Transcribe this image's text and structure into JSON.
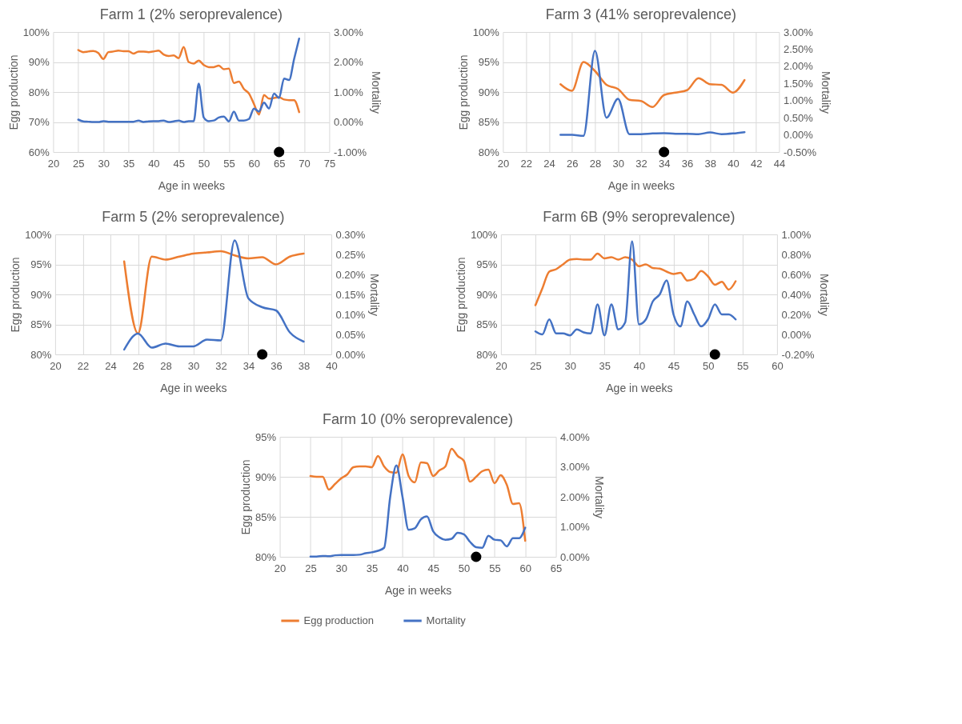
{
  "chart_data": [
    {
      "type": "line",
      "title": "Farm 1 (2% seroprevalence)",
      "xlabel": "Age in weeks",
      "ylabel": "Egg production",
      "y2label": "Mortality",
      "grid": true,
      "xlim": [
        20,
        75
      ],
      "xticks": [
        20,
        25,
        30,
        35,
        40,
        45,
        50,
        55,
        60,
        65,
        70,
        75
      ],
      "ylim": [
        60,
        100
      ],
      "yticks": [
        {
          "value": 60,
          "label": "60%"
        },
        {
          "value": 70,
          "label": "70%"
        },
        {
          "value": 80,
          "label": "80%"
        },
        {
          "value": 90,
          "label": "90%"
        },
        {
          "value": 100,
          "label": "100%"
        }
      ],
      "y2lim": [
        -1,
        3
      ],
      "y2ticks": [
        {
          "value": -1,
          "label": "-1.00%"
        },
        {
          "value": 0,
          "label": "0.00%"
        },
        {
          "value": 1,
          "label": "1.00%"
        },
        {
          "value": 2,
          "label": "2.00%"
        },
        {
          "value": 3,
          "label": "3.00%"
        }
      ],
      "series": [
        {
          "color": "#ed7d31",
          "x": [
            25,
            26,
            27,
            28,
            29,
            30,
            31,
            32,
            33,
            34,
            35,
            36,
            37,
            38,
            39,
            40,
            41,
            42,
            43,
            44,
            45,
            46,
            47,
            48,
            49,
            50,
            51,
            52,
            53,
            54,
            55,
            56,
            57,
            58,
            59,
            60,
            61,
            62,
            63,
            64,
            65,
            66,
            67,
            68,
            69
          ],
          "values": [
            94,
            93.3,
            93.5,
            93.7,
            93,
            91,
            93.3,
            93.5,
            93.8,
            93.6,
            93.6,
            92.8,
            93.5,
            93.5,
            93.3,
            93.5,
            93.8,
            92.5,
            92,
            92.2,
            91.3,
            95,
            90,
            89.5,
            90.5,
            89,
            88.3,
            88.3,
            88.8,
            87.6,
            87.8,
            83,
            83.5,
            81,
            79.5,
            76,
            72.5,
            79,
            77.8,
            78,
            78.3,
            77.5,
            77.3,
            77.3,
            73.3
          ]
        },
        {
          "color": "#4472c4",
          "axis": "y2",
          "x": [
            25,
            26,
            27,
            28,
            29,
            30,
            31,
            32,
            33,
            34,
            35,
            36,
            37,
            38,
            39,
            40,
            41,
            42,
            43,
            44,
            45,
            46,
            47,
            48,
            49,
            50,
            51,
            52,
            53,
            54,
            55,
            56,
            57,
            58,
            59,
            60,
            61,
            62,
            63,
            64,
            65,
            66,
            67,
            68,
            69
          ],
          "values": [
            0.08,
            0.02,
            0.01,
            0,
            0,
            0.03,
            0.01,
            0.01,
            0.01,
            0.01,
            0.01,
            0.01,
            0.05,
            0,
            0.02,
            0.03,
            0.03,
            0.05,
            0,
            0.02,
            0.05,
            0,
            0.03,
            0.03,
            1.28,
            0.15,
            0.03,
            0.05,
            0.15,
            0.18,
            0.02,
            0.35,
            0.05,
            0.05,
            0.1,
            0.45,
            0.35,
            0.65,
            0.45,
            0.95,
            0.8,
            1.45,
            1.4,
            2.1,
            2.78
          ]
        },
        {
          "type": "scatter",
          "color": "#000000",
          "x": [
            65
          ],
          "values": [
            60
          ]
        }
      ]
    },
    {
      "type": "line",
      "title": "Farm 3 (41% seroprevalence)",
      "xlabel": "Age in weeks",
      "ylabel": "Egg production",
      "y2label": "Mortality",
      "grid": true,
      "xlim": [
        20,
        44
      ],
      "xticks": [
        20,
        22,
        24,
        26,
        28,
        30,
        32,
        34,
        36,
        38,
        40,
        42,
        44
      ],
      "ylim": [
        80,
        100
      ],
      "yticks": [
        {
          "value": 80,
          "label": "80%"
        },
        {
          "value": 85,
          "label": "85%"
        },
        {
          "value": 90,
          "label": "90%"
        },
        {
          "value": 95,
          "label": "95%"
        },
        {
          "value": 100,
          "label": "100%"
        }
      ],
      "y2lim": [
        -0.5,
        3
      ],
      "y2ticks": [
        {
          "value": -0.5,
          "label": "-0.50%"
        },
        {
          "value": 0,
          "label": "0.00%"
        },
        {
          "value": 0.5,
          "label": "0.50%"
        },
        {
          "value": 1,
          "label": "1.00%"
        },
        {
          "value": 1.5,
          "label": "1.50%"
        },
        {
          "value": 2,
          "label": "2.00%"
        },
        {
          "value": 2.5,
          "label": "2.50%"
        },
        {
          "value": 3,
          "label": "3.00%"
        }
      ],
      "series": [
        {
          "color": "#ed7d31",
          "x": [
            25,
            26,
            27,
            28,
            29,
            30,
            31,
            32,
            33,
            34,
            35,
            36,
            37,
            38,
            39,
            40,
            41
          ],
          "values": [
            91.3,
            90.2,
            95,
            93.5,
            91.2,
            90.5,
            88.7,
            88.5,
            87.5,
            89.5,
            89.9,
            90.3,
            92.3,
            91.3,
            91.2,
            89.9,
            92
          ]
        },
        {
          "color": "#4472c4",
          "axis": "y2",
          "x": [
            25,
            26,
            27,
            28,
            29,
            30,
            31,
            32,
            33,
            34,
            35,
            36,
            37,
            38,
            39,
            40,
            41
          ],
          "values": [
            0,
            0,
            -0.03,
            2.45,
            0.5,
            1.05,
            0.02,
            0.02,
            0.04,
            0.05,
            0.03,
            0.03,
            0.02,
            0.07,
            0.02,
            0.04,
            0.08
          ]
        },
        {
          "type": "scatter",
          "color": "#000000",
          "x": [
            34
          ],
          "values": [
            80
          ]
        }
      ]
    },
    {
      "type": "line",
      "title": "Farm 5 (2% seroprevalence)",
      "xlabel": "Age in weeks",
      "ylabel": "Egg production",
      "y2label": "Mortality",
      "grid": true,
      "xlim": [
        20,
        40
      ],
      "xticks": [
        20,
        22,
        24,
        26,
        28,
        30,
        32,
        34,
        36,
        38,
        40
      ],
      "ylim": [
        80,
        100
      ],
      "yticks": [
        {
          "value": 80,
          "label": "80%"
        },
        {
          "value": 85,
          "label": "85%"
        },
        {
          "value": 90,
          "label": "90%"
        },
        {
          "value": 95,
          "label": "95%"
        },
        {
          "value": 100,
          "label": "100%"
        }
      ],
      "y2lim": [
        0,
        0.3
      ],
      "y2ticks": [
        {
          "value": 0,
          "label": "0.00%"
        },
        {
          "value": 0.05,
          "label": "0.05%"
        },
        {
          "value": 0.1,
          "label": "0.10%"
        },
        {
          "value": 0.15,
          "label": "0.15%"
        },
        {
          "value": 0.2,
          "label": "0.20%"
        },
        {
          "value": 0.25,
          "label": "0.25%"
        },
        {
          "value": 0.3,
          "label": "0.30%"
        }
      ],
      "series": [
        {
          "color": "#ed7d31",
          "x": [
            25,
            26,
            27,
            28,
            29,
            30,
            31,
            32,
            33,
            34,
            35,
            36,
            37,
            38
          ],
          "values": [
            95.5,
            83.5,
            96.3,
            95.8,
            96.3,
            96.8,
            97,
            97.2,
            96.5,
            96,
            96.2,
            95,
            96.3,
            96.8
          ]
        },
        {
          "color": "#4472c4",
          "axis": "y2",
          "x": [
            25,
            26,
            27,
            28,
            29,
            30,
            31,
            32,
            33,
            34,
            35,
            36,
            37,
            38
          ],
          "values": [
            0.012,
            0.052,
            0.017,
            0.027,
            0.02,
            0.02,
            0.037,
            0.035,
            0.285,
            0.14,
            0.118,
            0.11,
            0.055,
            0.032
          ]
        },
        {
          "type": "scatter",
          "color": "#000000",
          "x": [
            35
          ],
          "values": [
            80
          ]
        }
      ]
    },
    {
      "type": "line",
      "title": "Farm 6B (9% seroprevalence)",
      "xlabel": "Age in weeks",
      "ylabel": "Egg production",
      "y2label": "Mortality",
      "grid": true,
      "xlim": [
        20,
        60
      ],
      "xticks": [
        20,
        25,
        30,
        35,
        40,
        45,
        50,
        55,
        60
      ],
      "ylim": [
        80,
        100
      ],
      "yticks": [
        {
          "value": 80,
          "label": "80%"
        },
        {
          "value": 85,
          "label": "85%"
        },
        {
          "value": 90,
          "label": "90%"
        },
        {
          "value": 95,
          "label": "95%"
        },
        {
          "value": 100,
          "label": "100%"
        }
      ],
      "y2lim": [
        -0.2,
        1
      ],
      "y2ticks": [
        {
          "value": -0.2,
          "label": "-0.20%"
        },
        {
          "value": 0,
          "label": "0.00%"
        },
        {
          "value": 0.2,
          "label": "0.20%"
        },
        {
          "value": 0.4,
          "label": "0.40%"
        },
        {
          "value": 0.6,
          "label": "0.60%"
        },
        {
          "value": 0.8,
          "label": "0.80%"
        },
        {
          "value": 1,
          "label": "1.00%"
        }
      ],
      "series": [
        {
          "color": "#ed7d31",
          "x": [
            25,
            26,
            27,
            28,
            29,
            30,
            31,
            32,
            33,
            34,
            35,
            36,
            37,
            38,
            39,
            40,
            41,
            42,
            43,
            44,
            45,
            46,
            47,
            48,
            49,
            50,
            51,
            52,
            53,
            54
          ],
          "values": [
            88.2,
            91,
            93.8,
            94.2,
            95,
            95.8,
            95.9,
            95.8,
            95.8,
            96.8,
            96,
            96.2,
            95.8,
            96.2,
            95.8,
            94.7,
            95,
            94.4,
            94.3,
            93.8,
            93.4,
            93.6,
            92.3,
            92.6,
            93.9,
            93,
            91.6,
            92.1,
            90.8,
            92.2
          ]
        },
        {
          "color": "#4472c4",
          "axis": "y2",
          "x": [
            25,
            26,
            27,
            28,
            29,
            30,
            31,
            32,
            33,
            34,
            35,
            36,
            37,
            38,
            39,
            40,
            41,
            42,
            43,
            44,
            45,
            46,
            47,
            48,
            49,
            50,
            51,
            52,
            53,
            54
          ],
          "values": [
            0.03,
            0,
            0.15,
            0.01,
            0.01,
            -0.01,
            0.05,
            0.02,
            0.01,
            0.3,
            -0.01,
            0.3,
            0.05,
            0.12,
            0.93,
            0.1,
            0.15,
            0.33,
            0.4,
            0.54,
            0.2,
            0.08,
            0.33,
            0.2,
            0.08,
            0.15,
            0.3,
            0.2,
            0.2,
            0.15
          ]
        },
        {
          "type": "scatter",
          "color": "#000000",
          "x": [
            51
          ],
          "values": [
            80
          ]
        }
      ]
    },
    {
      "type": "line",
      "title": "Farm 10 (0% seroprevalence)",
      "xlabel": "Age in weeks",
      "ylabel": "Egg production",
      "y2label": "Mortality",
      "grid": true,
      "legend": "bottom",
      "xlim": [
        20,
        65
      ],
      "xticks": [
        20,
        25,
        30,
        35,
        40,
        45,
        50,
        55,
        60,
        65
      ],
      "ylim": [
        80,
        95
      ],
      "yticks": [
        {
          "value": 80,
          "label": "80%"
        },
        {
          "value": 85,
          "label": "85%"
        },
        {
          "value": 90,
          "label": "90%"
        },
        {
          "value": 95,
          "label": "95%"
        }
      ],
      "y2lim": [
        0,
        4
      ],
      "y2ticks": [
        {
          "value": 0,
          "label": "0.00%"
        },
        {
          "value": 1,
          "label": "1.00%"
        },
        {
          "value": 2,
          "label": "2.00%"
        },
        {
          "value": 3,
          "label": "3.00%"
        },
        {
          "value": 4,
          "label": "4.00%"
        }
      ],
      "series": [
        {
          "name": "Egg production",
          "color": "#ed7d31",
          "x": [
            25,
            26,
            27,
            28,
            29,
            30,
            31,
            32,
            33,
            34,
            35,
            36,
            37,
            38,
            39,
            40,
            41,
            42,
            43,
            44,
            45,
            46,
            47,
            48,
            49,
            50,
            51,
            52,
            53,
            54,
            55,
            56,
            57,
            58,
            59,
            60
          ],
          "values": [
            90.1,
            90,
            90,
            88.4,
            89.1,
            89.8,
            90.3,
            91.2,
            91.3,
            91.3,
            91.2,
            92.6,
            91.3,
            90.6,
            90.5,
            92.8,
            90.1,
            89.3,
            91.8,
            91.7,
            90.1,
            90.8,
            91.3,
            93.5,
            92.6,
            92,
            89.4,
            90,
            90.7,
            90.9,
            89.2,
            90.2,
            89,
            86.6,
            86.7,
            82
          ]
        },
        {
          "name": "Mortality",
          "color": "#4472c4",
          "axis": "y2",
          "x": [
            25,
            26,
            27,
            28,
            29,
            30,
            31,
            32,
            33,
            34,
            35,
            36,
            37,
            38,
            39,
            40,
            41,
            42,
            43,
            44,
            45,
            46,
            47,
            48,
            49,
            50,
            51,
            52,
            53,
            54,
            55,
            56,
            57,
            58,
            59,
            60
          ],
          "values": [
            0.01,
            0.01,
            0.03,
            0.02,
            0.05,
            0.06,
            0.06,
            0.06,
            0.07,
            0.12,
            0.15,
            0.2,
            0.3,
            2,
            3.05,
            2,
            0.9,
            0.95,
            1.25,
            1.35,
            0.85,
            0.65,
            0.57,
            0.6,
            0.8,
            0.75,
            0.5,
            0.32,
            0.3,
            0.7,
            0.57,
            0.55,
            0.35,
            0.62,
            0.62,
            0.97
          ]
        },
        {
          "type": "scatter",
          "color": "#000000",
          "x": [
            52
          ],
          "values": [
            80
          ]
        }
      ]
    }
  ]
}
